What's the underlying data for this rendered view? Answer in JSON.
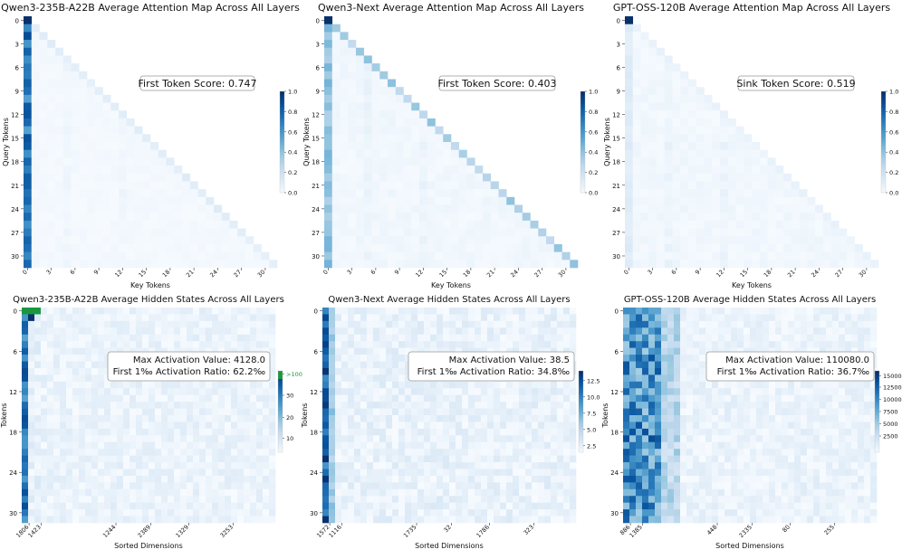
{
  "colors": {
    "cmap": [
      "#f7fbff",
      "#deebf7",
      "#c6dbef",
      "#9ecae1",
      "#6baed6",
      "#4292c6",
      "#2171b5",
      "#08519c",
      "#08306b"
    ],
    "overflow": "#1a9641",
    "frame": "#999999"
  },
  "chart_data": [
    {
      "type": "heatmap",
      "title": "Qwen3-235B-A22B Average Attention Map Across All Layers",
      "xlabel": "Key Tokens",
      "ylabel": "Query Tokens",
      "x_ticks": [
        "0",
        "3",
        "6",
        "9",
        "12",
        "15",
        "18",
        "21",
        "24",
        "27",
        "30"
      ],
      "y_ticks": [
        "0",
        "3",
        "6",
        "9",
        "12",
        "15",
        "18",
        "21",
        "24",
        "27",
        "30"
      ],
      "annotation": "First Token Score: 0.747",
      "colorbar": {
        "ticks": [
          "1.0",
          "0.8",
          "0.6",
          "0.4",
          "0.2",
          "0.0"
        ],
        "range": [
          0,
          1
        ]
      },
      "pattern": {
        "kind": "attention",
        "first_col": 0.747,
        "diag": 0.1,
        "base": 0.02
      }
    },
    {
      "type": "heatmap",
      "title": "Qwen3-Next Average Attention Map Across All Layers",
      "xlabel": "Key Tokens",
      "ylabel": "Query Tokens",
      "x_ticks": [
        "0",
        "3",
        "6",
        "9",
        "12",
        "15",
        "18",
        "21",
        "24",
        "27",
        "30"
      ],
      "y_ticks": [
        "0",
        "3",
        "6",
        "9",
        "12",
        "15",
        "18",
        "21",
        "24",
        "27",
        "30"
      ],
      "annotation": "First Token Score: 0.403",
      "colorbar": {
        "ticks": [
          "1.0",
          "0.8",
          "0.6",
          "0.4",
          "0.2",
          "0.0"
        ],
        "range": [
          0,
          1
        ]
      },
      "pattern": {
        "kind": "attention",
        "first_col": 0.403,
        "diag": 0.32,
        "base": 0.03
      }
    },
    {
      "type": "heatmap",
      "title": "GPT-OSS-120B Average Attention Map Across All Layers",
      "xlabel": "Key Tokens",
      "ylabel": "Query Tokens",
      "x_ticks": [
        "0",
        "3",
        "6",
        "9",
        "12",
        "15",
        "18",
        "21",
        "24",
        "27",
        "30"
      ],
      "y_ticks": [
        "0",
        "3",
        "6",
        "9",
        "12",
        "15",
        "18",
        "21",
        "24",
        "27",
        "30"
      ],
      "annotation": "Sink Token Score: 0.519",
      "colorbar": {
        "ticks": [
          "1.0",
          "0.8",
          "0.6",
          "0.4",
          "0.2",
          "0.0"
        ],
        "range": [
          0,
          1
        ]
      },
      "pattern": {
        "kind": "attention",
        "first_col": 0.12,
        "diag": 0.06,
        "base": 0.03
      }
    },
    {
      "type": "heatmap",
      "title": "Qwen3-235B-A22B Average Hidden States Across All Layers",
      "xlabel": "Sorted Dimensions",
      "ylabel": "Tokens",
      "x_ticks": [
        "1806",
        "1423",
        "1244",
        "2389",
        "1329",
        "3253"
      ],
      "y_ticks": [
        "0",
        "6",
        "12",
        "18",
        "24",
        "30"
      ],
      "annotation": "Max Activation Value: 4128.0\nFirst 1‰ Activation Ratio: 62.2‰",
      "colorbar": {
        "ticks": [
          ">100",
          "30",
          "20",
          "10"
        ],
        "range": [
          0,
          45
        ]
      },
      "pattern": {
        "kind": "hidden",
        "variant": "qwen235"
      }
    },
    {
      "type": "heatmap",
      "title": "Qwen3-Next Average Hidden States Across All Layers",
      "xlabel": "Sorted Dimensions",
      "ylabel": "Tokens",
      "x_ticks": [
        "1572",
        "1116",
        "1735",
        "32",
        "1786",
        "323"
      ],
      "y_ticks": [
        "0",
        "6",
        "12",
        "18",
        "24",
        "30"
      ],
      "annotation": "Max Activation Value: 38.5\nFirst 1‰ Activation Ratio: 34.8‰",
      "colorbar": {
        "ticks": [
          "12.5",
          "10.0",
          "7.5",
          "5.0",
          "2.5"
        ],
        "range": [
          0,
          14
        ]
      },
      "pattern": {
        "kind": "hidden",
        "variant": "next"
      }
    },
    {
      "type": "heatmap",
      "title": "GPT-OSS-120B Average Hidden States Across All Layers",
      "xlabel": "Sorted Dimensions",
      "ylabel": "Tokens",
      "x_ticks": [
        "886",
        "1385",
        "448",
        "2335",
        "80",
        "255"
      ],
      "y_ticks": [
        "0",
        "6",
        "12",
        "18",
        "24",
        "30"
      ],
      "annotation": "Max Activation Value: 110080.0\nFirst 1‰ Activation Ratio: 36.7‰",
      "colorbar": {
        "ticks": [
          "15000",
          "12500",
          "10000",
          "7500",
          "5000",
          "2500"
        ],
        "range": [
          0,
          17000
        ]
      },
      "pattern": {
        "kind": "hidden",
        "variant": "gpt"
      }
    }
  ]
}
